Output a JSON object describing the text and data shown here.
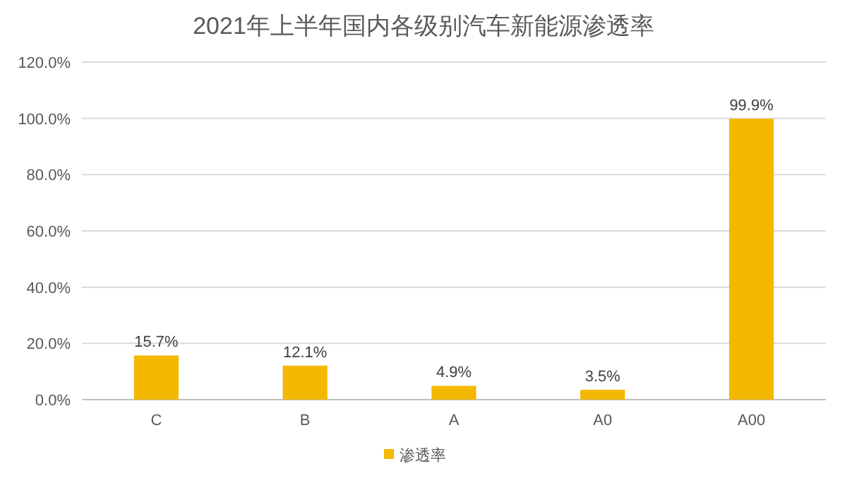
{
  "chart_data": {
    "type": "bar",
    "title": "2021年上半年国内各级别汽车新能源渗透率",
    "categories": [
      "C",
      "B",
      "A",
      "A0",
      "A00"
    ],
    "series": [
      {
        "name": "渗透率",
        "color": "#f5b800",
        "values": [
          15.7,
          12.1,
          4.9,
          3.5,
          99.9
        ]
      }
    ],
    "value_labels": [
      "15.7%",
      "12.1%",
      "4.9%",
      "3.5%",
      "99.9%"
    ],
    "ylim": [
      0,
      120
    ],
    "yticks": [
      {
        "value": 0,
        "label": "0.0%"
      },
      {
        "value": 20,
        "label": "20.0%"
      },
      {
        "value": 40,
        "label": "40.0%"
      },
      {
        "value": 60,
        "label": "60.0%"
      },
      {
        "value": 80,
        "label": "80.0%"
      },
      {
        "value": 100,
        "label": "100.0%"
      },
      {
        "value": 120,
        "label": "120.0%"
      }
    ],
    "grid": "y",
    "legend": "bottom"
  }
}
